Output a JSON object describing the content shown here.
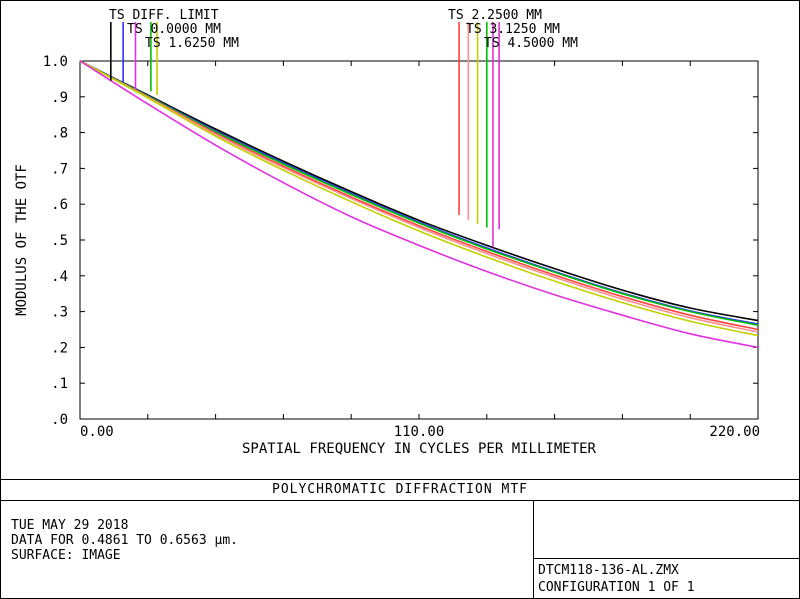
{
  "chart_data": {
    "type": "line",
    "title": "POLYCHROMATIC DIFFRACTION MTF",
    "xlabel": "SPATIAL FREQUENCY IN CYCLES PER MILLIMETER",
    "ylabel": "MODULUS OF THE OTF",
    "xlim": [
      0,
      220
    ],
    "ylim": [
      0,
      1.0
    ],
    "x_tick_labels": [
      "0.00",
      "110.00",
      "220.00"
    ],
    "y_tick_labels": [
      "1.0",
      ".9",
      ".8",
      ".7",
      ".6",
      ".5",
      ".4",
      ".3",
      ".2",
      ".1",
      ".0"
    ],
    "grid": false,
    "x": [
      0,
      22,
      44,
      66,
      88,
      110,
      132,
      154,
      176,
      198,
      220
    ],
    "series": [
      {
        "name": "TS DIFF. LIMIT",
        "color": "#000000",
        "values": [
          1.0,
          0.905,
          0.81,
          0.72,
          0.635,
          0.555,
          0.485,
          0.42,
          0.36,
          0.31,
          0.275
        ]
      },
      {
        "name": "TS 0.0000 MM",
        "color": "#3030ff",
        "values": [
          1.0,
          0.903,
          0.805,
          0.715,
          0.63,
          0.55,
          0.478,
          0.412,
          0.352,
          0.302,
          0.265
        ]
      },
      {
        "name": "TS 1.6250 MM",
        "color": "#00c000",
        "values": [
          1.0,
          0.902,
          0.802,
          0.712,
          0.627,
          0.547,
          0.475,
          0.41,
          0.35,
          0.3,
          0.262
        ]
      },
      {
        "name": "TS 2.2500 MM",
        "color": "#ff4040",
        "values": [
          1.0,
          0.9,
          0.798,
          0.706,
          0.62,
          0.54,
          0.468,
          0.402,
          0.342,
          0.29,
          0.25
        ]
      },
      {
        "name": "TS 3.1250 MM",
        "color": "#ff9090",
        "values": [
          1.0,
          0.899,
          0.795,
          0.702,
          0.616,
          0.535,
          0.462,
          0.396,
          0.335,
          0.283,
          0.243
        ]
      },
      {
        "name": "TS 4.5000 MM",
        "color": "#c0d000",
        "values": [
          1.0,
          0.897,
          0.79,
          0.695,
          0.607,
          0.525,
          0.452,
          0.385,
          0.325,
          0.273,
          0.233
        ]
      },
      {
        "name": "",
        "color": "#e030e0",
        "values": [
          1.0,
          0.88,
          0.765,
          0.66,
          0.565,
          0.485,
          0.412,
          0.347,
          0.29,
          0.238,
          0.2
        ]
      }
    ],
    "legend_top": [
      "TS DIFF. LIMIT",
      "TS 0.0000 MM",
      "TS 1.6250 MM"
    ],
    "legend_right": [
      "TS 2.2500 MM",
      "TS 3.1250 MM",
      "TS 4.5000 MM"
    ],
    "legend_marker_x": [
      {
        "color": "#000000",
        "x": 10,
        "y_end": 0.945
      },
      {
        "color": "#3030ff",
        "x": 14,
        "y_end": 0.94
      },
      {
        "color": "#e030e0",
        "x": 18,
        "y_end": 0.92
      },
      {
        "color": "#00c000",
        "x": 23,
        "y_end": 0.915
      },
      {
        "color": "#c0d000",
        "x": 25,
        "y_end": 0.905
      },
      {
        "color": "#ff4040",
        "x": 123,
        "y_end": 0.57
      },
      {
        "color": "#ff9090",
        "x": 126,
        "y_end": 0.555
      },
      {
        "color": "#c0d000",
        "x": 129,
        "y_end": 0.545
      },
      {
        "color": "#00c000",
        "x": 132,
        "y_end": 0.535
      },
      {
        "color": "#e030e0",
        "x": 134,
        "y_end": 0.48
      },
      {
        "color": "#e030e0",
        "x": 136,
        "y_end": 0.53
      }
    ]
  },
  "footer": {
    "date": "TUE MAY 29 2018",
    "data_line": "DATA FOR 0.4861 TO 0.6563 µm.",
    "surface": "SURFACE: IMAGE",
    "file": "DTCM118-136-AL.ZMX",
    "config": "CONFIGURATION 1 OF 1"
  }
}
